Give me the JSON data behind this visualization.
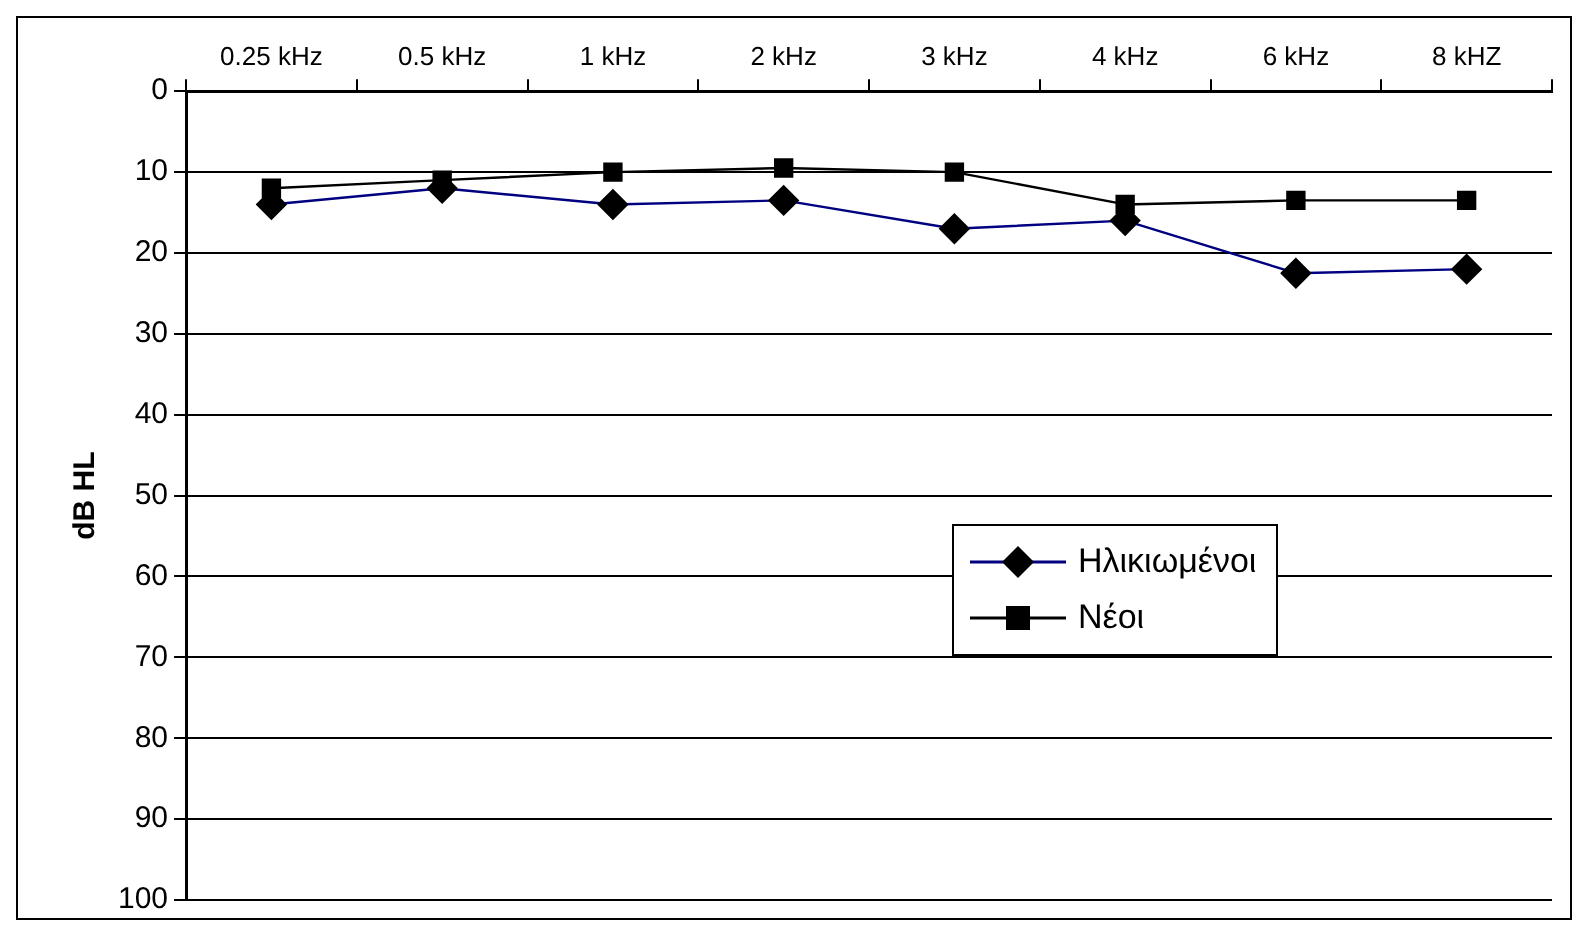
{
  "chart_data": {
    "type": "line",
    "ylabel": "dB HL",
    "categories": [
      "0.25 kHz",
      "0.5 kHz",
      "1 kHz",
      "2 kHz",
      "3 kHz",
      "4 kHz",
      "6 kHz",
      "8 kHZ"
    ],
    "series": [
      {
        "name": "Ηλικιωμένοι",
        "color": "#000080",
        "marker": "diamond",
        "values": [
          14,
          12,
          14,
          13.5,
          17,
          16,
          22.5,
          22
        ]
      },
      {
        "name": "Νέοι",
        "color": "#000000",
        "marker": "square",
        "values": [
          12,
          11,
          10,
          9.5,
          10,
          14,
          13.5,
          13.5
        ]
      }
    ],
    "ylim": [
      100,
      0
    ],
    "yticks": [
      0,
      10,
      20,
      30,
      40,
      50,
      60,
      70,
      80,
      90,
      100
    ],
    "grid": "y",
    "legend": "right",
    "line_style": "solid"
  }
}
